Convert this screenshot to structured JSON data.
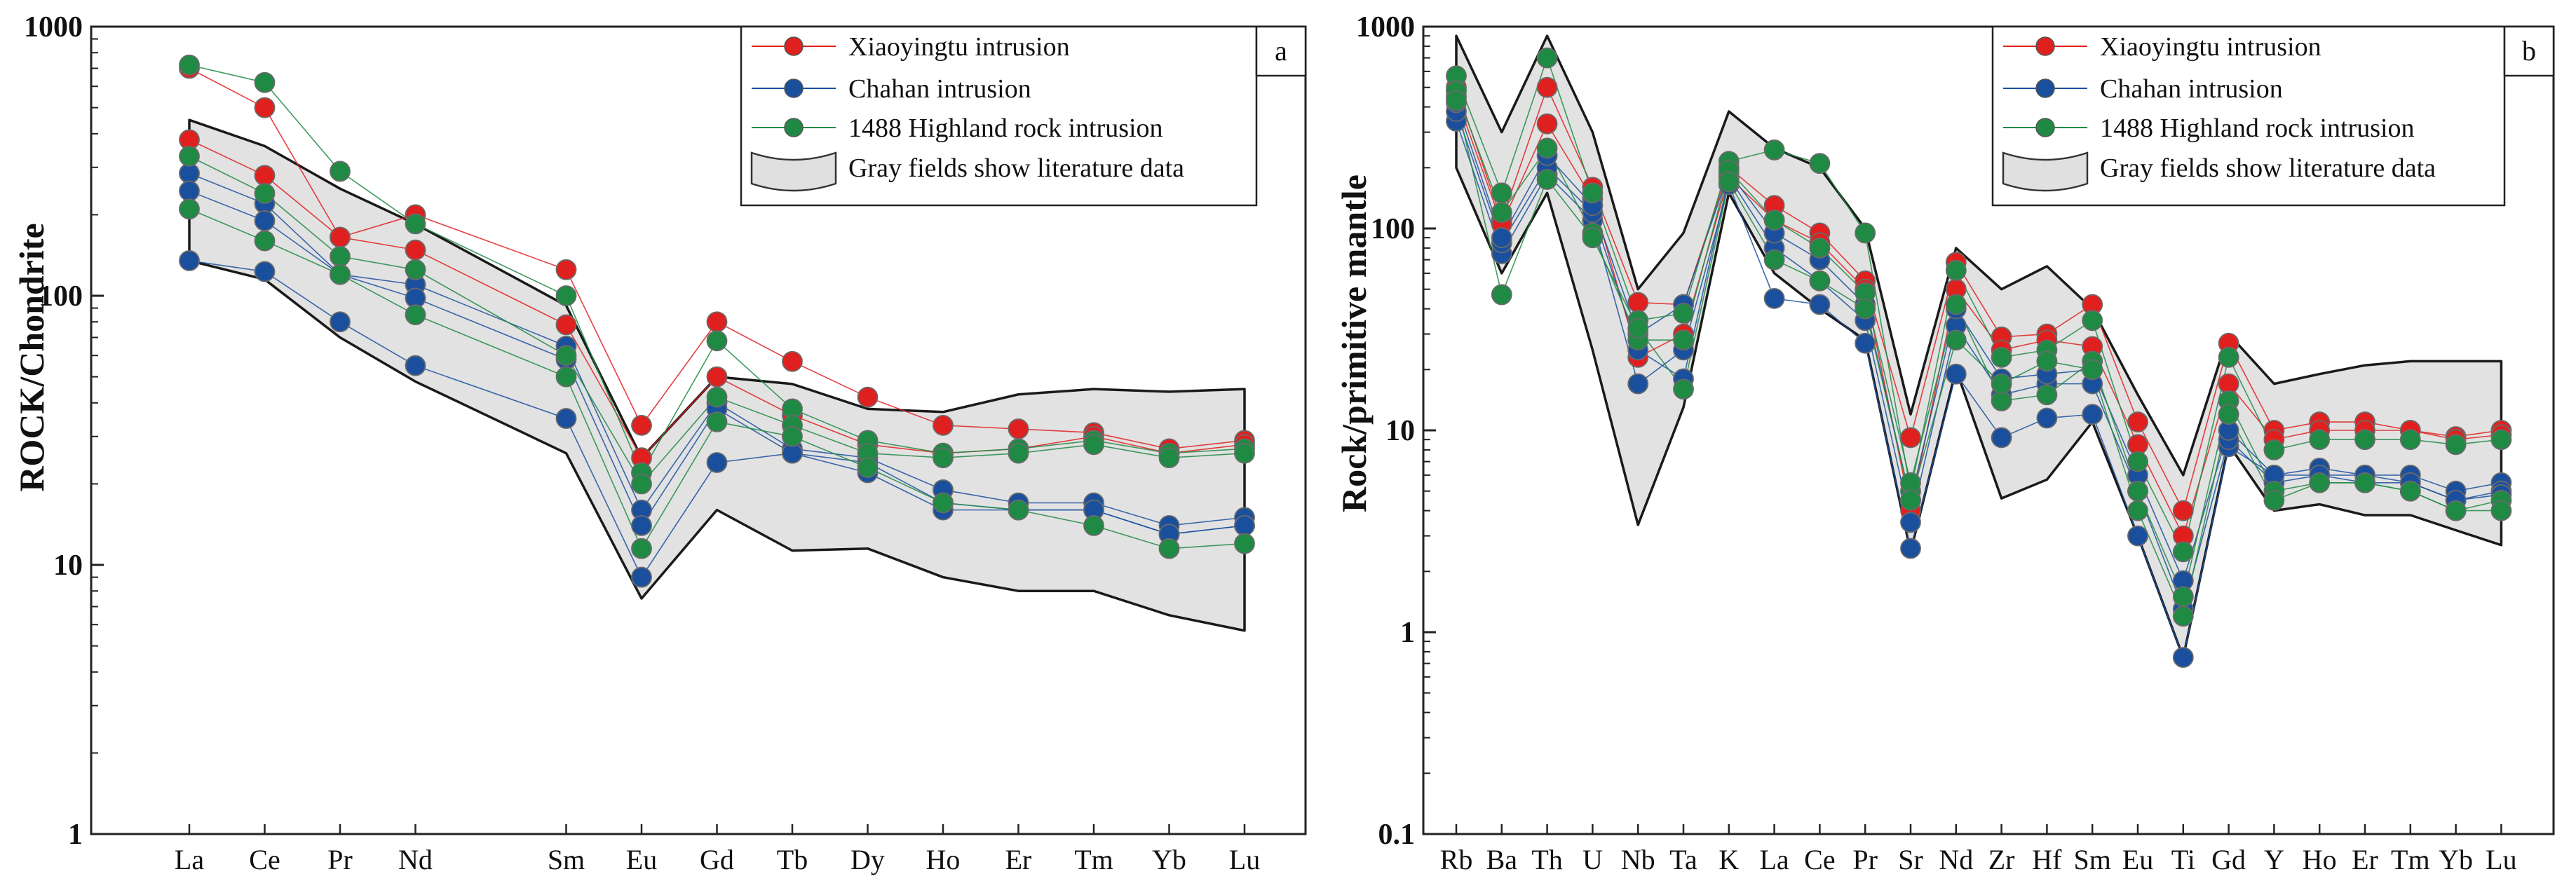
{
  "chart_data": [
    {
      "type": "line",
      "panel_label": "a",
      "xlabel": "",
      "ylabel": "ROCK/Chondrite",
      "yscale": "log",
      "ylim": [
        1,
        1000
      ],
      "ytick_labels": [
        "1",
        "10",
        "100",
        "1000"
      ],
      "categories": [
        "La",
        "Ce",
        "Pr",
        "Nd",
        "Sm",
        "Eu",
        "Gd",
        "Tb",
        "Dy",
        "Ho",
        "Er",
        "Tm",
        "Yb",
        "Lu"
      ],
      "category_positions": [
        0,
        1,
        2,
        3,
        5,
        6,
        7,
        8,
        9,
        10,
        11,
        12,
        13,
        14
      ],
      "legend": {
        "position": "top-right",
        "entries": [
          "Xiaoyingtu intrusion",
          "Chahan intrusion",
          "1488 Highland rock intrusion"
        ],
        "field_label": "Gray fields show literature data"
      },
      "field": {
        "upper": [
          450,
          360,
          250,
          185,
          92,
          25,
          50,
          47,
          38,
          37,
          43,
          45,
          44,
          45
        ],
        "lower": [
          135,
          115,
          70,
          48,
          26,
          7.5,
          16,
          11.3,
          11.5,
          9,
          8,
          8,
          6.5,
          5.7
        ]
      },
      "series": [
        {
          "name": "Xiaoyingtu intrusion",
          "color": "#e0201e",
          "samples": [
            [
              700,
              500,
              165,
              200,
              125,
              33,
              80,
              57,
              42,
              33,
              32,
              31,
              27,
              29
            ],
            [
              380,
              280,
              165,
              148,
              78,
              25,
              50,
              36,
              28,
              26,
              27,
              30,
              26,
              28
            ]
          ]
        },
        {
          "name": "Chahan intrusion",
          "color": "#1a4f9e",
          "samples": [
            [
              285,
              220,
              120,
              110,
              65,
              16,
              40,
              27,
              25,
              19,
              17,
              17,
              14,
              15
            ],
            [
              245,
              190,
              120,
              98,
              58,
              14,
              38,
              26,
              24,
              17,
              16,
              16,
              13,
              14
            ],
            [
              135,
              123,
              80,
              55,
              35,
              9,
              24,
              26,
              22,
              16,
              16,
              16,
              13,
              14
            ]
          ]
        },
        {
          "name": "1488 Highland rock intrusion",
          "color": "#1f8a44",
          "samples": [
            [
              720,
              620,
              290,
              185,
              100,
              22,
              68,
              38,
              29,
              26,
              27,
              29,
              26,
              27
            ],
            [
              330,
              240,
              140,
              125,
              60,
              20,
              42,
              33,
              26,
              25,
              26,
              28,
              25,
              26
            ],
            [
              210,
              160,
              120,
              85,
              50,
              11.5,
              34,
              30,
              23,
              17,
              16,
              14,
              11.5,
              12
            ]
          ]
        }
      ]
    },
    {
      "type": "line",
      "panel_label": "b",
      "xlabel": "",
      "ylabel": "Rock/primitive mantle",
      "yscale": "log",
      "ylim": [
        0.1,
        1000
      ],
      "ytick_labels": [
        "0.1",
        "1",
        "10",
        "100",
        "1000"
      ],
      "categories": [
        "Rb",
        "Ba",
        "Th",
        "U",
        "Nb",
        "Ta",
        "K",
        "La",
        "Ce",
        "Pr",
        "Sr",
        "Nd",
        "Zr",
        "Hf",
        "Sm",
        "Eu",
        "Ti",
        "Gd",
        "Y",
        "Ho",
        "Er",
        "Tm",
        "Yb",
        "Lu"
      ],
      "category_positions": [
        0,
        1,
        2,
        3,
        4,
        5,
        6,
        7,
        8,
        9,
        10,
        11,
        12,
        13,
        14,
        15,
        16,
        17,
        18,
        19,
        20,
        21,
        22,
        23
      ],
      "legend": {
        "position": "top-right",
        "entries": [
          "Xiaoyingtu intrusion",
          "Chahan intrusion",
          "1488 Highland rock intrusion"
        ],
        "field_label": "Gray fields show literature data"
      },
      "field": {
        "upper": [
          900,
          300,
          900,
          300,
          50,
          95,
          380,
          250,
          200,
          100,
          12,
          80,
          50,
          65,
          40,
          15,
          6,
          30,
          17,
          19,
          21,
          22,
          22,
          22
        ],
        "lower": [
          200,
          60,
          150,
          25,
          3.4,
          13,
          150,
          60,
          40,
          28,
          2.5,
          20,
          4.6,
          5.7,
          11,
          3,
          0.75,
          8.5,
          4,
          4.3,
          3.8,
          3.8,
          3.2,
          2.7
        ]
      },
      "series": [
        {
          "name": "Xiaoyingtu intrusion",
          "color": "#e0201e",
          "samples": [
            [
              500,
              110,
              500,
              160,
              43,
              42,
              200,
              130,
              95,
              55,
              9.2,
              68,
              29,
              30,
              42,
              11,
              4,
              27,
              10,
              11,
              11,
              10,
              9.3,
              10
            ],
            [
              450,
              105,
              330,
              140,
              23,
              30,
              180,
              110,
              85,
              50,
              4,
              50,
              25,
              28,
              26,
              8.5,
              3,
              17,
              9,
              10,
              10,
              10,
              9,
              9.5
            ]
          ]
        },
        {
          "name": "Chahan intrusion",
          "color": "#1a4f9e",
          "samples": [
            [
              340,
              75,
              185,
              110,
              17,
              25,
              165,
              45,
              42,
              27,
              2.6,
              19,
              9.2,
              11.5,
              12,
              3,
              0.75,
              8.3,
              6,
              6.5,
              6,
              6,
              5,
              5.5
            ],
            [
              380,
              85,
              200,
              120,
              25,
              18,
              180,
              80,
              55,
              35,
              3.5,
              33,
              15,
              17,
              17,
              5,
              1.3,
              9,
              5.5,
              6,
              5.5,
              5.5,
              4.5,
              5
            ],
            [
              420,
              90,
              230,
              130,
              30,
              42,
              190,
              95,
              70,
              42,
              4.5,
              40,
              18,
              19,
              20,
              6,
              1.8,
              10,
              6,
              6,
              6,
              5.5,
              4.5,
              4.8
            ]
          ]
        },
        {
          "name": "1488 Highland rock intrusion",
          "color": "#1f8a44",
          "samples": [
            [
              570,
              150,
              700,
              150,
              35,
              38,
              215,
              245,
              210,
              95,
              5,
              62,
              23,
              25,
              35,
              7,
              2.5,
              23,
              8,
              9,
              9,
              9,
              8.5,
              9
            ],
            [
              480,
              120,
              250,
              95,
              28,
              28,
              195,
              110,
              80,
              48,
              5.5,
              42,
              14,
              15,
              22,
              5,
              1.5,
              14,
              5,
              5.5,
              5.5,
              5,
              4,
              4.5
            ],
            [
              430,
              47,
              175,
              90,
              32,
              16,
              170,
              70,
              55,
              40,
              4.5,
              28,
              17,
              22,
              20,
              4,
              1.2,
              12,
              4.5,
              5.5,
              5.5,
              5,
              4,
              4
            ]
          ]
        }
      ]
    }
  ]
}
